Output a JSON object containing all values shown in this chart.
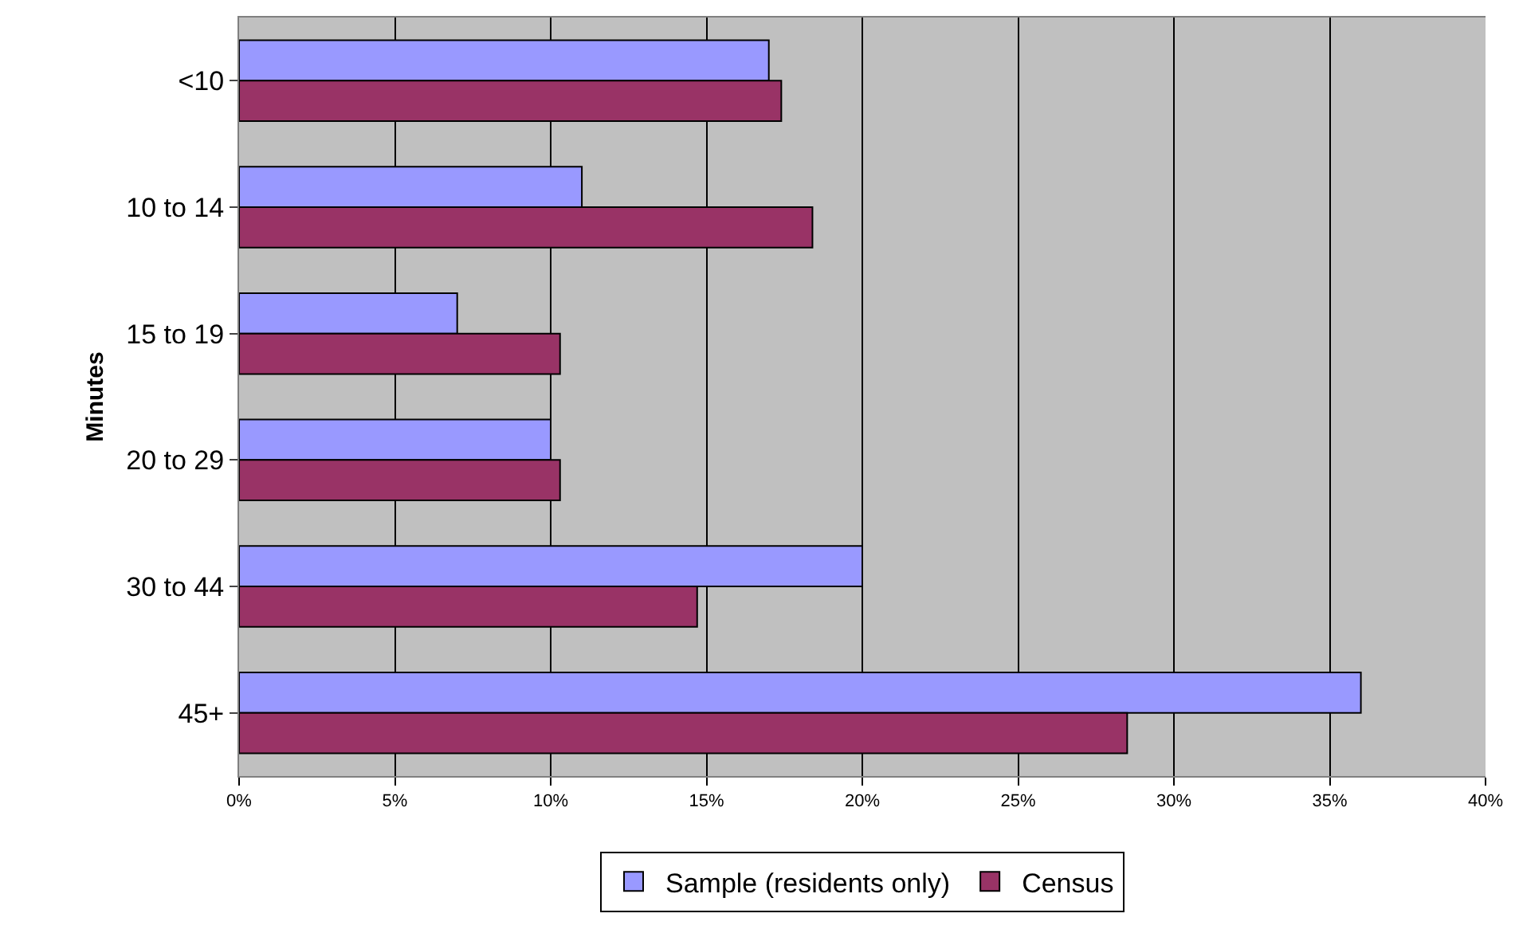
{
  "chart_data": {
    "type": "bar",
    "orientation": "horizontal",
    "ylabel": "Minutes",
    "categories": [
      "<10",
      "10 to 14",
      "15 to 19",
      "20 to 29",
      "30 to 44",
      "45+"
    ],
    "series": [
      {
        "name": "Sample (residents only)",
        "color": "#9999ff",
        "values": [
          17.0,
          11.0,
          7.0,
          10.0,
          20.0,
          36.0
        ]
      },
      {
        "name": "Census",
        "color": "#993366",
        "values": [
          17.4,
          18.4,
          10.3,
          10.3,
          14.7,
          28.5
        ]
      }
    ],
    "xlim": [
      0,
      40
    ],
    "xticks": [
      {
        "value": 0,
        "label": "0%"
      },
      {
        "value": 5,
        "label": "5%"
      },
      {
        "value": 10,
        "label": "10%"
      },
      {
        "value": 15,
        "label": "15%"
      },
      {
        "value": 20,
        "label": "20%"
      },
      {
        "value": 25,
        "label": "25%"
      },
      {
        "value": 30,
        "label": "30%"
      },
      {
        "value": 35,
        "label": "35%"
      },
      {
        "value": 40,
        "label": "40%"
      }
    ],
    "grid": "x",
    "legend": "bottom"
  }
}
